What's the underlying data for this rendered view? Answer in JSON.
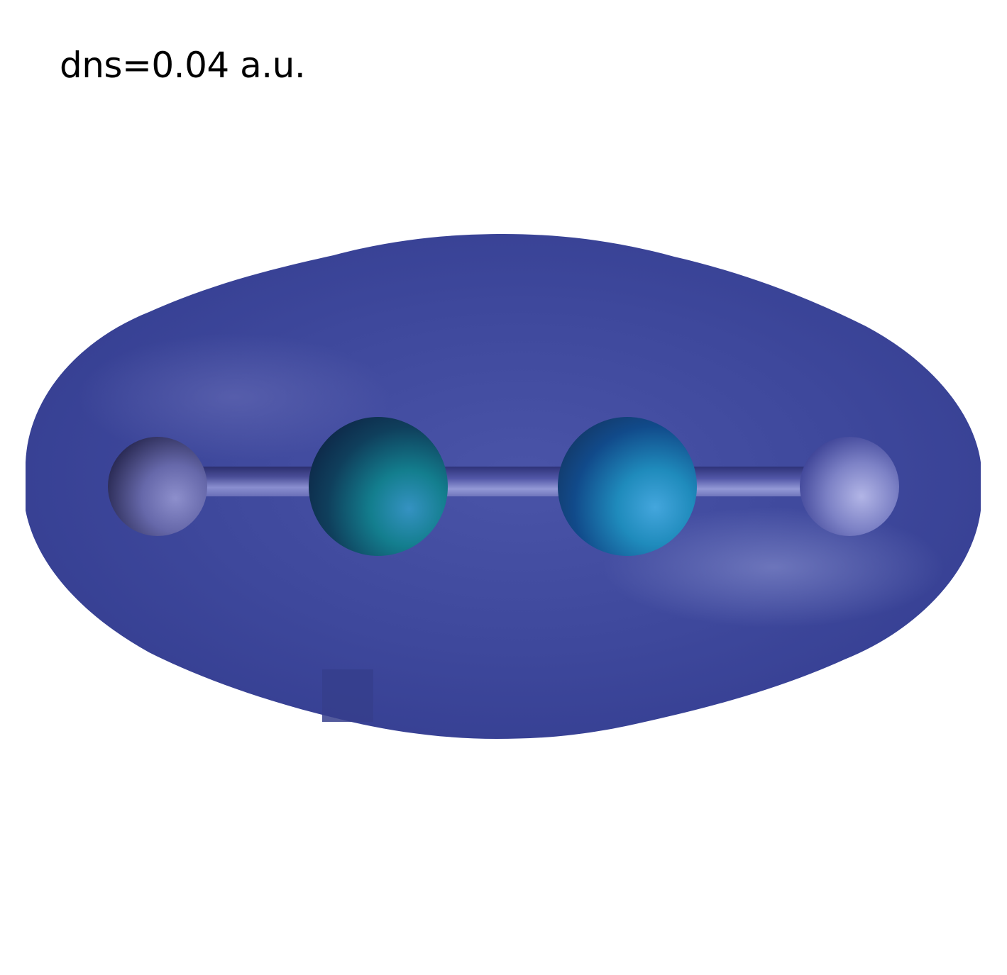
{
  "annotation": {
    "text": "dns=0.04 a.u."
  },
  "colors": {
    "background": "#ffffff",
    "isosurface": "#3c4699",
    "isosurface_highlight": "#6a72b8",
    "isosurface_shadow": "#2e3680",
    "end_atom": "#7a80c2",
    "end_atom_shadow": "#2c2c5a",
    "center_atom": "#2b9bb5",
    "center_atom_shadow": "#0f2c52",
    "bond": "#8a90cc"
  },
  "molecule": {
    "atoms": [
      {
        "name": "end-atom-left",
        "kind": "end"
      },
      {
        "name": "center-atom-left",
        "kind": "center"
      },
      {
        "name": "center-atom-right",
        "kind": "center"
      },
      {
        "name": "end-atom-right",
        "kind": "end"
      }
    ],
    "bonds": 3
  }
}
